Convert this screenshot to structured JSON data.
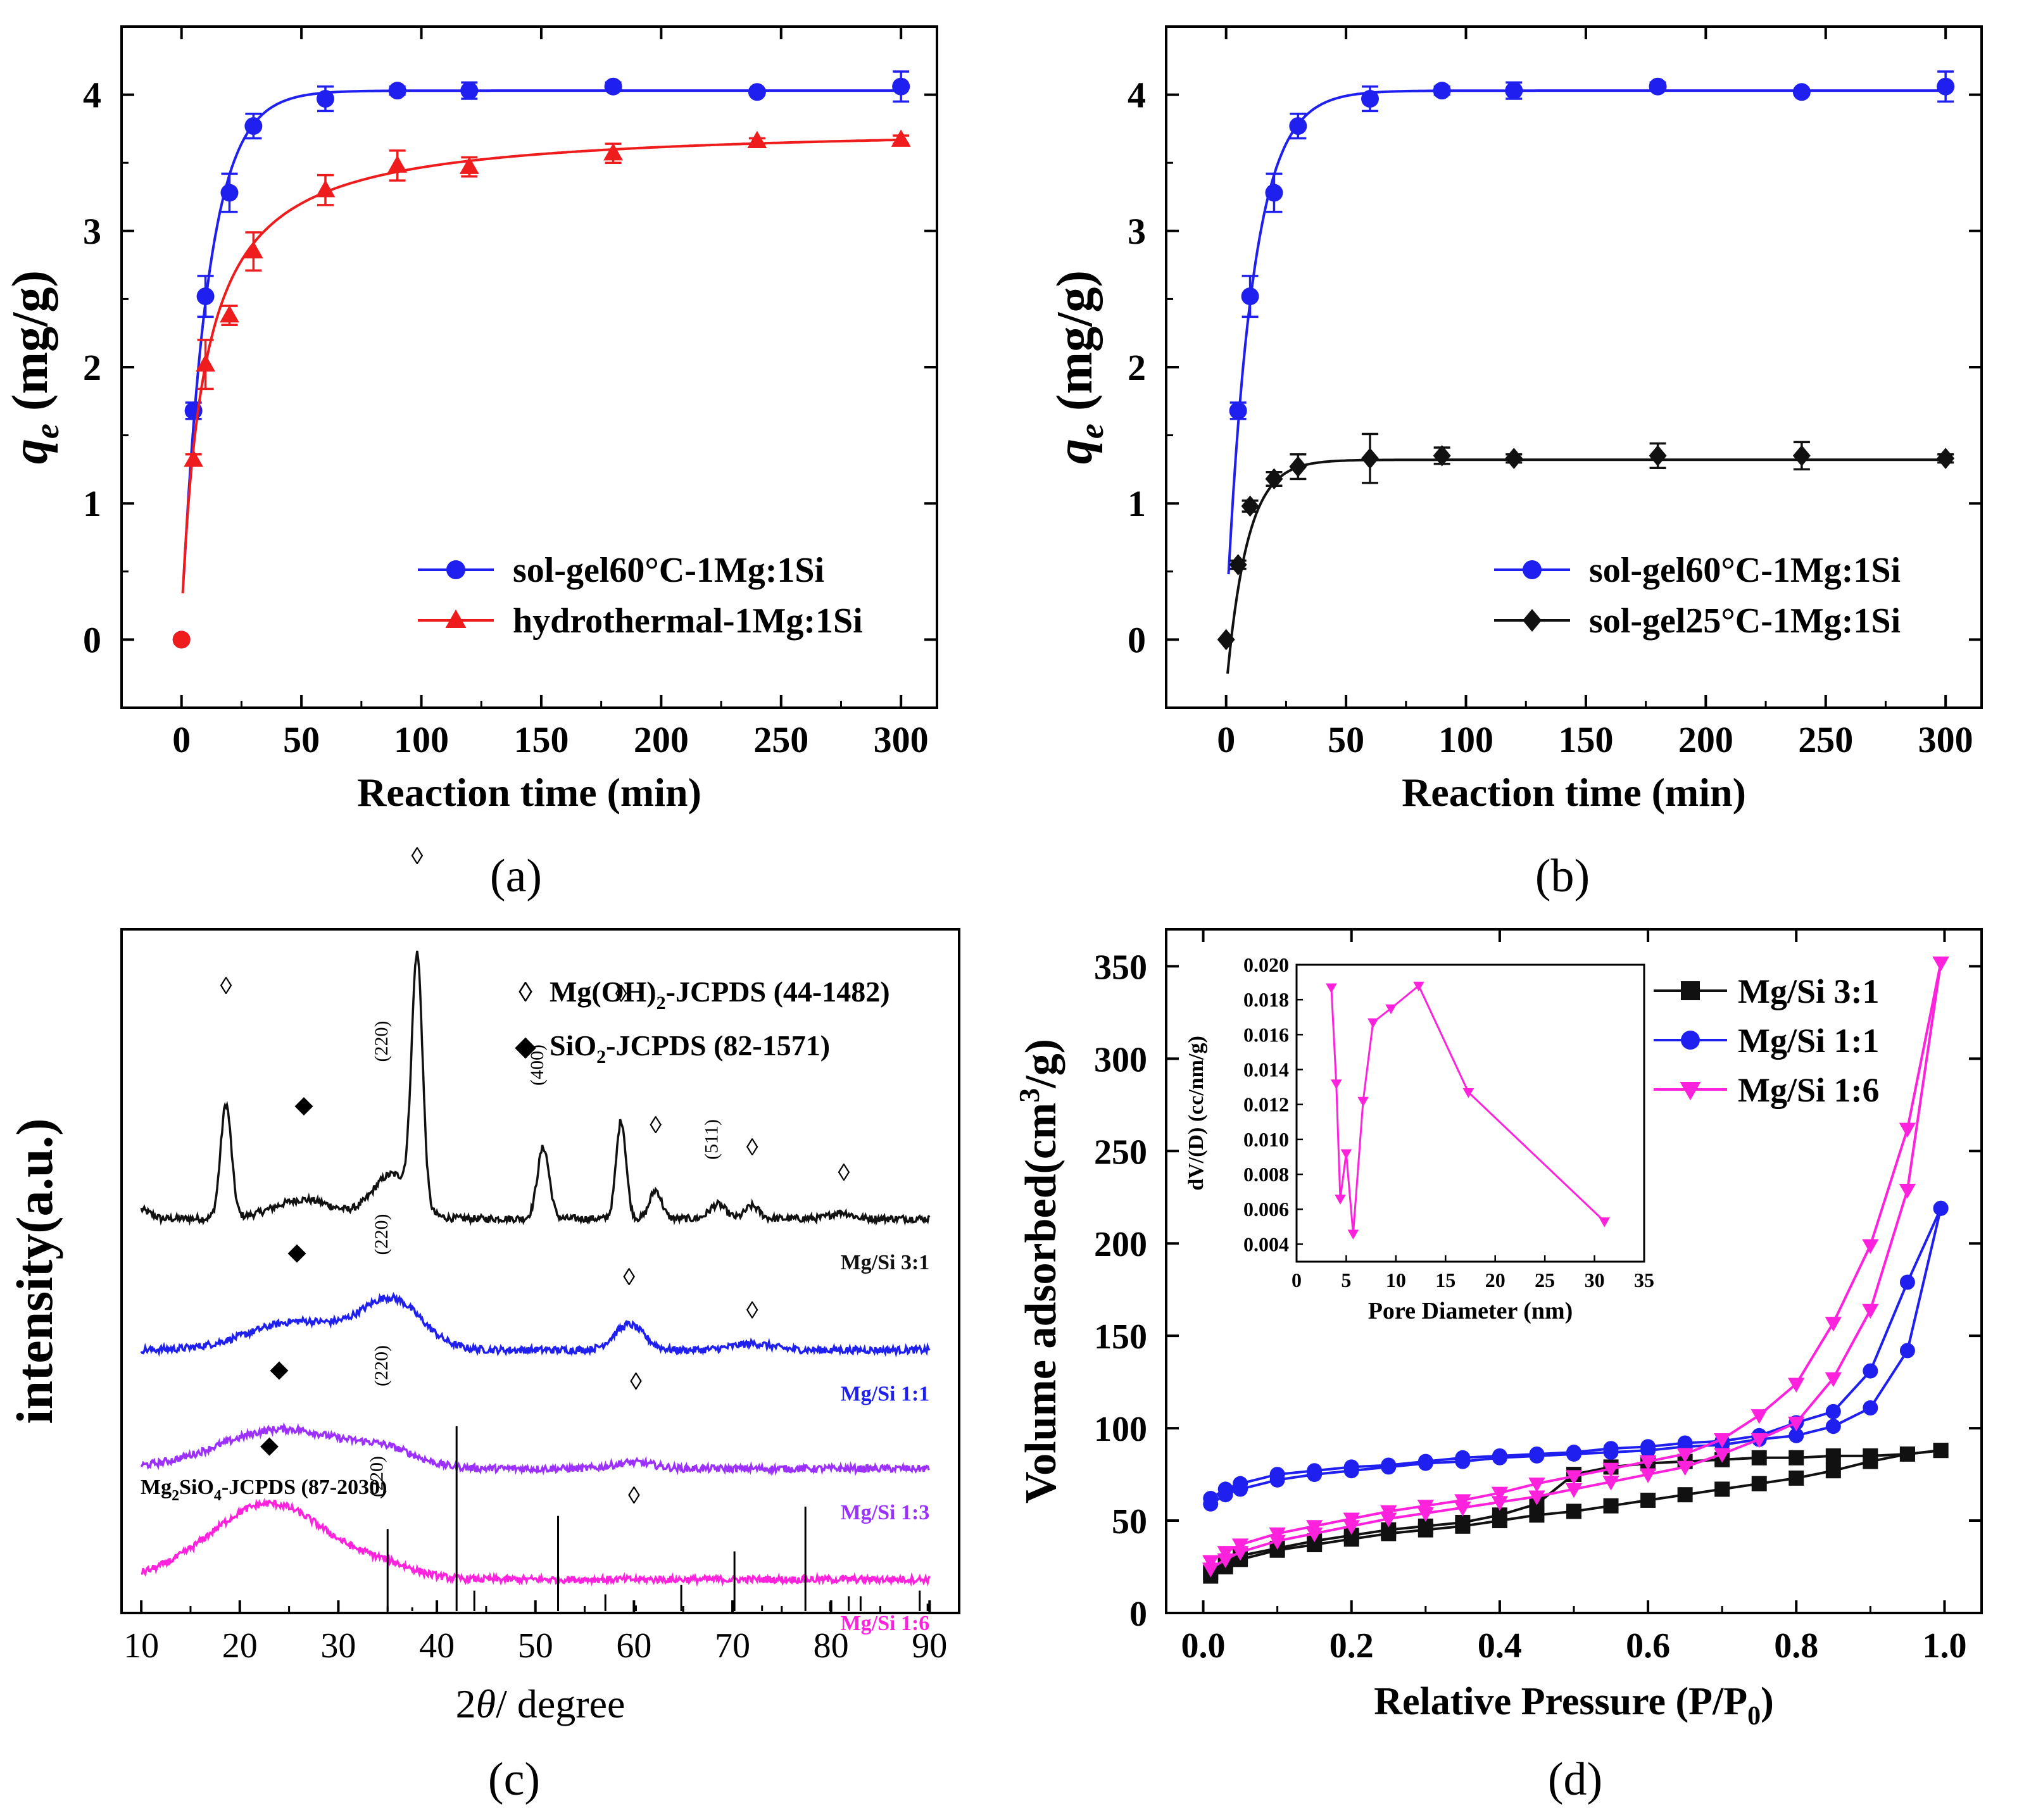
{
  "panels": {
    "a": {
      "caption": "(a)"
    },
    "b": {
      "caption": "(b)"
    },
    "c": {
      "caption": "(c)"
    },
    "d": {
      "caption": "(d)"
    }
  },
  "colors": {
    "blue": "#1f1ff0",
    "red": "#ee1c1c",
    "black": "#111111",
    "purple": "#9b30ff",
    "magenta": "#ff22dd"
  },
  "chart_data": [
    {
      "id": "a",
      "type": "scatter",
      "xlabel": "Reaction time (min)",
      "ylabel_main": "q",
      "ylabel_sub": "e",
      "ylabel_unit": " (mg/g)",
      "xlim": [
        -25,
        315
      ],
      "ylim": [
        -0.5,
        4.5
      ],
      "xticks": [
        0,
        50,
        100,
        150,
        200,
        250,
        300
      ],
      "yticks": [
        0,
        1,
        2,
        3,
        4
      ],
      "legend_position": "bottom-right",
      "series": [
        {
          "name": "sol-gel60°C-1Mg:1Si",
          "color": "#1f1ff0",
          "marker": "circle",
          "x": [
            0,
            5,
            10,
            20,
            30,
            60,
            90,
            120,
            180,
            240,
            300
          ],
          "y": [
            0,
            1.68,
            2.52,
            3.28,
            3.77,
            3.97,
            4.03,
            4.03,
            4.06,
            4.02,
            4.06
          ],
          "err": [
            0,
            0.06,
            0.15,
            0.14,
            0.09,
            0.09,
            0.03,
            0.06,
            0.03,
            0.02,
            0.11
          ],
          "fit": {
            "kind": "exp",
            "qe": 4.03,
            "k": 0.092,
            "x0": 1,
            "y0": 0.48
          }
        },
        {
          "name": "hydrothermal-1Mg:1Si",
          "color": "#ee1c1c",
          "marker": "triangle",
          "x": [
            0,
            5,
            10,
            20,
            30,
            60,
            90,
            120,
            180,
            240,
            300
          ],
          "y": [
            0,
            1.32,
            2.02,
            2.38,
            2.85,
            3.3,
            3.48,
            3.47,
            3.57,
            3.66,
            3.67
          ],
          "err": [
            0,
            0.04,
            0.18,
            0.07,
            0.14,
            0.11,
            0.11,
            0.07,
            0.07,
            0.02,
            0.03
          ],
          "fit": {
            "kind": "hyp",
            "qe": 3.78,
            "h": 10.0,
            "x0": 0.5,
            "y0": 0.34
          }
        }
      ]
    },
    {
      "id": "b",
      "type": "scatter",
      "xlabel": "Reaction time (min)",
      "ylabel_main": "q",
      "ylabel_sub": "e",
      "ylabel_unit": " (mg/g)",
      "xlim": [
        -25,
        315
      ],
      "ylim": [
        -0.5,
        4.5
      ],
      "xticks": [
        0,
        50,
        100,
        150,
        200,
        250,
        300
      ],
      "yticks": [
        0,
        1,
        2,
        3,
        4
      ],
      "legend_position": "bottom-right",
      "series": [
        {
          "name": "sol-gel60°C-1Mg:1Si",
          "color": "#1f1ff0",
          "marker": "circle",
          "x": [
            5,
            10,
            20,
            30,
            60,
            90,
            120,
            180,
            240,
            300
          ],
          "y": [
            1.68,
            2.52,
            3.28,
            3.77,
            3.97,
            4.03,
            4.03,
            4.06,
            4.02,
            4.06
          ],
          "err": [
            0.06,
            0.15,
            0.14,
            0.09,
            0.09,
            0.03,
            0.06,
            0.03,
            0.02,
            0.11
          ],
          "fit": {
            "kind": "exp",
            "qe": 4.03,
            "k": 0.092,
            "x0": 1,
            "y0": 0.48
          }
        },
        {
          "name": "sol-gel25°C-1Mg:1Si",
          "color": "#111111",
          "marker": "diamond",
          "x": [
            0,
            5,
            10,
            20,
            30,
            60,
            90,
            120,
            180,
            240,
            300
          ],
          "y": [
            0,
            0.55,
            0.98,
            1.18,
            1.27,
            1.33,
            1.35,
            1.33,
            1.35,
            1.35,
            1.33
          ],
          "err": [
            0,
            0.03,
            0.04,
            0.05,
            0.09,
            0.18,
            0.06,
            0.03,
            0.09,
            0.1,
            0.03
          ],
          "fit": {
            "kind": "exp",
            "qe": 1.32,
            "k": 0.115,
            "x0": 0.6,
            "y0": -0.25
          }
        }
      ]
    },
    {
      "id": "c",
      "type": "line",
      "xlabel_pre": "2",
      "xlabel_theta": "θ",
      "xlabel_post": "/ degree",
      "ylabel": "intensity(a.u.)",
      "xlim": [
        8,
        93
      ],
      "xticks": [
        10,
        20,
        30,
        40,
        50,
        60,
        70,
        80,
        90
      ],
      "legend": [
        {
          "symbol": "◊",
          "html": [
            "Mg(OH)",
            "2",
            "-JCPDS (44-1482)"
          ]
        },
        {
          "symbol": "◆",
          "html": [
            "SiO",
            "2",
            "-JCPDS (82-1571)"
          ]
        }
      ],
      "reference_label": [
        "Mg",
        "2",
        "SiO",
        "4",
        "-JCPDS (87-2030)"
      ],
      "reference_peaks": [
        [
          20,
          0.06
        ],
        [
          35.0,
          0.45
        ],
        [
          37.5,
          0.03
        ],
        [
          42.0,
          1.0
        ],
        [
          43.8,
          0.12
        ],
        [
          52.3,
          0.52
        ],
        [
          57.1,
          0.1
        ],
        [
          60.2,
          0.04
        ],
        [
          64.8,
          0.15
        ],
        [
          70.2,
          0.33
        ],
        [
          73.0,
          0.04
        ],
        [
          77.4,
          0.57
        ],
        [
          79.9,
          0.06
        ],
        [
          81.8,
          0.09
        ],
        [
          83.0,
          0.09
        ],
        [
          89.0,
          0.12
        ],
        [
          89.8,
          0.05
        ]
      ],
      "series": [
        {
          "name": "Mg/Si 3:1",
          "color": "#111111",
          "baseline": 0.08,
          "peaks": [
            [
              18.6,
              0.72,
              0.55
            ],
            [
              26.5,
              0.12,
              3.0
            ],
            [
              35.5,
              0.28,
              2.0
            ],
            [
              38.0,
              1.55,
              0.55
            ],
            [
              50.8,
              0.45,
              0.6
            ],
            [
              58.7,
              0.62,
              0.5
            ],
            [
              62.2,
              0.18,
              0.6
            ],
            [
              68.5,
              0.09,
              0.8
            ],
            [
              72.0,
              0.08,
              0.7
            ],
            [
              81.0,
              0.04,
              1.0
            ]
          ],
          "annotations": [
            {
              "t": "◊",
              "x": 18.6,
              "y": 1.5
            },
            {
              "t": "◆",
              "x": 26.5,
              "y": 0.75
            },
            {
              "t": "(220)",
              "x": 35.0,
              "y": 1.2,
              "rot": true
            },
            {
              "t": "◊",
              "x": 38.0,
              "y": 2.32
            },
            {
              "t": "(400)",
              "x": 50.8,
              "y": 1.05,
              "rot": true
            },
            {
              "t": "◊",
              "x": 58.7,
              "y": 1.45
            },
            {
              "t": "◊",
              "x": 62.2,
              "y": 0.62
            },
            {
              "t": "(511)",
              "x": 68.5,
              "y": 0.58,
              "rot": true
            },
            {
              "t": "◊",
              "x": 72.0,
              "y": 0.48
            },
            {
              "t": "◊",
              "x": 81.3,
              "y": 0.32
            }
          ]
        },
        {
          "name": "Mg/Si 1:1",
          "color": "#1f1ff0",
          "baseline": -0.75,
          "peaks": [
            [
              26.0,
              0.18,
              5.0
            ],
            [
              35.5,
              0.3,
              3.0
            ],
            [
              59.5,
              0.16,
              1.5
            ],
            [
              72.0,
              0.04,
              2.0
            ]
          ],
          "annotations": [
            {
              "t": "◆",
              "x": 25.8,
              "y": -0.18
            },
            {
              "t": "(220)",
              "x": 35.0,
              "y": -0.02,
              "rot": true
            },
            {
              "t": "◊",
              "x": 59.5,
              "y": -0.34
            },
            {
              "t": "◊",
              "x": 72.0,
              "y": -0.55
            }
          ]
        },
        {
          "name": "Mg/Si 1:3",
          "color": "#9b30ff",
          "baseline": -1.5,
          "peaks": [
            [
              24.5,
              0.25,
              6.5
            ],
            [
              35.0,
              0.08,
              3.0
            ],
            [
              60.0,
              0.04,
              2.0
            ]
          ],
          "annotations": [
            {
              "t": "◆",
              "x": 24.0,
              "y": -0.92
            },
            {
              "t": "(220)",
              "x": 35.0,
              "y": -0.85,
              "rot": true
            },
            {
              "t": "◊",
              "x": 60.2,
              "y": -1.0
            }
          ]
        },
        {
          "name": "Mg/Si 1:6",
          "color": "#ff22dd",
          "baseline": -2.2,
          "peaks": [
            [
              23.0,
              0.48,
              6.0
            ],
            [
              35.0,
              0.06,
              3.0
            ]
          ],
          "annotations": [
            {
              "t": "◆",
              "x": 23.0,
              "y": -1.4
            },
            {
              "t": "(220)",
              "x": 34.5,
              "y": -1.55,
              "rot": true
            },
            {
              "t": "◊",
              "x": 60.0,
              "y": -1.72
            }
          ]
        }
      ]
    },
    {
      "id": "d",
      "type": "line",
      "xlabel_main": "Relative Pressure (P/P",
      "xlabel_sub": "0",
      "xlabel_end": ")",
      "ylabel_main": "Volume adsorbed(cm",
      "ylabel_sup": "3",
      "ylabel_end": "/g)",
      "xlim": [
        -0.05,
        1.05
      ],
      "ylim": [
        0,
        370
      ],
      "xticks": [
        0.0,
        0.2,
        0.4,
        0.6,
        0.8,
        1.0
      ],
      "yticks": [
        0,
        50,
        100,
        150,
        200,
        250,
        300,
        350
      ],
      "legend_position": "top-right",
      "series": [
        {
          "name": "Mg/Si 3:1",
          "color": "#111111",
          "marker": "square",
          "adsorption": {
            "x": [
              0.01,
              0.03,
              0.05,
              0.1,
              0.15,
              0.2,
              0.25,
              0.3,
              0.35,
              0.4,
              0.45,
              0.5,
              0.55,
              0.6,
              0.65,
              0.7,
              0.75,
              0.8,
              0.85,
              0.9,
              0.95,
              0.995
            ],
            "y": [
              20,
              25,
              29,
              34,
              37,
              40,
              43,
              45,
              47,
              50,
              53,
              55,
              58,
              61,
              64,
              67,
              70,
              73,
              77,
              82,
              86,
              88
            ]
          },
          "desorption": {
            "x": [
              0.995,
              0.95,
              0.9,
              0.85,
              0.8,
              0.75,
              0.7,
              0.65,
              0.6,
              0.55,
              0.5,
              0.45,
              0.4,
              0.35,
              0.3,
              0.25,
              0.2,
              0.15,
              0.1,
              0.05,
              0.03,
              0.01
            ],
            "y": [
              88,
              86,
              85,
              85,
              84,
              84,
              83,
              82,
              81,
              79,
              75,
              59,
              53,
              49,
              47,
              45,
              42,
              39,
              35,
              31,
              27,
              22
            ]
          }
        },
        {
          "name": "Mg/Si 1:1",
          "color": "#1f1ff0",
          "marker": "circle",
          "adsorption": {
            "x": [
              0.01,
              0.03,
              0.05,
              0.1,
              0.15,
              0.2,
              0.25,
              0.3,
              0.35,
              0.4,
              0.45,
              0.5,
              0.55,
              0.6,
              0.65,
              0.7,
              0.75,
              0.8,
              0.85,
              0.9,
              0.95,
              0.995
            ],
            "y": [
              59,
              64,
              67,
              72,
              75,
              77,
              79,
              81,
              82,
              84,
              85,
              86,
              87,
              88,
              90,
              91,
              94,
              96,
              101,
              111,
              142,
              219
            ]
          },
          "desorption": {
            "x": [
              0.995,
              0.95,
              0.9,
              0.85,
              0.8,
              0.75,
              0.7,
              0.65,
              0.6,
              0.55,
              0.5,
              0.45,
              0.4,
              0.35,
              0.3,
              0.25,
              0.2,
              0.15,
              0.1,
              0.05,
              0.03,
              0.01
            ],
            "y": [
              219,
              179,
              131,
              109,
              103,
              96,
              93,
              92,
              90,
              89,
              87,
              86,
              85,
              84,
              82,
              80,
              79,
              77,
              75,
              70,
              67,
              62
            ]
          }
        },
        {
          "name": "Mg/Si 1:6",
          "color": "#ff22dd",
          "marker": "triangle-down",
          "adsorption": {
            "x": [
              0.01,
              0.03,
              0.05,
              0.1,
              0.15,
              0.2,
              0.25,
              0.3,
              0.35,
              0.4,
              0.45,
              0.5,
              0.55,
              0.6,
              0.65,
              0.7,
              0.75,
              0.8,
              0.85,
              0.9,
              0.95,
              0.995
            ],
            "y": [
              24,
              29,
              33,
              39,
              43,
              47,
              51,
              54,
              57,
              60,
              63,
              67,
              71,
              75,
              79,
              86,
              94,
              103,
              127,
              164,
              229,
              352
            ]
          },
          "desorption": {
            "x": [
              0.995,
              0.95,
              0.9,
              0.85,
              0.8,
              0.75,
              0.7,
              0.65,
              0.6,
              0.55,
              0.5,
              0.45,
              0.4,
              0.35,
              0.3,
              0.25,
              0.2,
              0.15,
              0.1,
              0.05,
              0.03,
              0.01
            ],
            "y": [
              352,
              262,
              199,
              157,
              124,
              107,
              94,
              86,
              82,
              78,
              74,
              70,
              65,
              61,
              58,
              55,
              51,
              47,
              43,
              37,
              33,
              28
            ]
          }
        }
      ],
      "inset": {
        "xlabel": "Pore Diameter (nm)",
        "ylabel": "dV/(D) (cc/nm/g)",
        "xlim": [
          0,
          35
        ],
        "ylim": [
          0.003,
          0.02
        ],
        "xticks": [
          0,
          5,
          10,
          15,
          20,
          25,
          30,
          35
        ],
        "yticks": [
          0.004,
          0.006,
          0.008,
          0.01,
          0.012,
          0.014,
          0.016,
          0.018,
          0.02
        ],
        "ytick_labels": [
          "0.004",
          "0.006",
          "0.008",
          "0.010",
          "0.012",
          "0.014",
          "0.016",
          "0.018",
          "0.020"
        ],
        "color": "#ff22dd",
        "marker": "triangle-down",
        "x": [
          3.5,
          4.0,
          4.4,
          5.0,
          5.7,
          6.7,
          7.7,
          9.5,
          12.3,
          17.3,
          31.0
        ],
        "y": [
          0.0187,
          0.0132,
          0.0066,
          0.0092,
          0.0046,
          0.0122,
          0.0167,
          0.0175,
          0.0188,
          0.0127,
          0.0053
        ]
      }
    }
  ]
}
